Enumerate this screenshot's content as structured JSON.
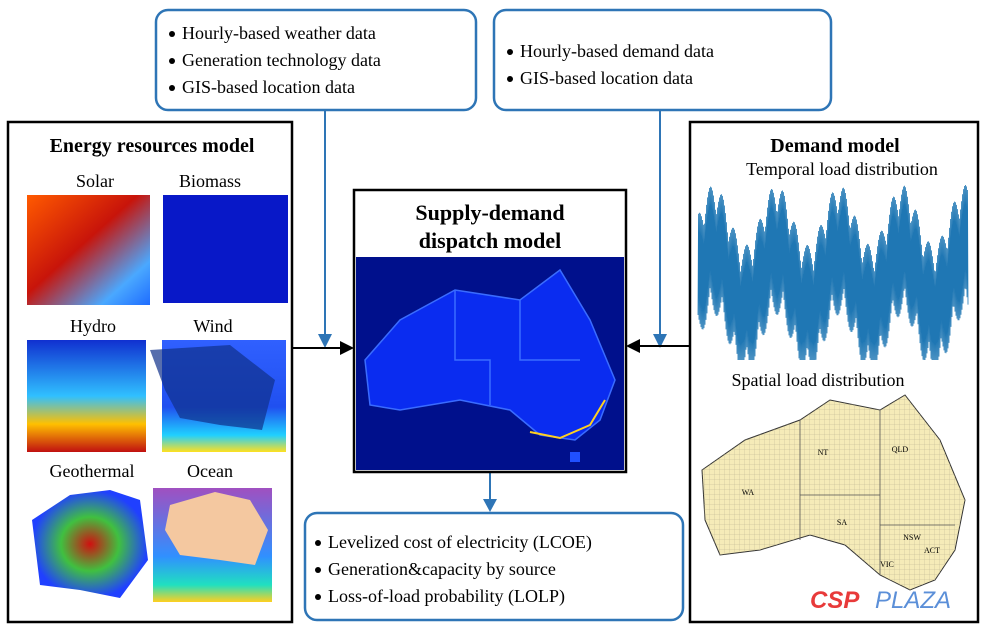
{
  "inputs": {
    "resources": [
      "Hourly-based weather data",
      "Generation technology data",
      "GIS-based location data"
    ],
    "demand": [
      "Hourly-based demand data",
      "GIS-based location data"
    ]
  },
  "energy_model": {
    "title": "Energy resources model",
    "resources": [
      "Solar",
      "Biomass",
      "Hydro",
      "Wind",
      "Geothermal",
      "Ocean"
    ]
  },
  "dispatch_model": {
    "title": [
      "Supply-demand",
      "dispatch model"
    ]
  },
  "demand_model": {
    "title": "Demand model",
    "temporal": "Temporal load distribution",
    "spatial": "Spatial load distribution",
    "regions": [
      "WA",
      "NT",
      "QLD",
      "SA",
      "NSW",
      "ACT",
      "VIC"
    ]
  },
  "outputs": [
    "Levelized cost of electricity (LCOE)",
    "Generation&capacity by source",
    "Loss-of-load probability (LOLP)"
  ],
  "watermark": [
    "CSP",
    "PLAZA"
  ]
}
